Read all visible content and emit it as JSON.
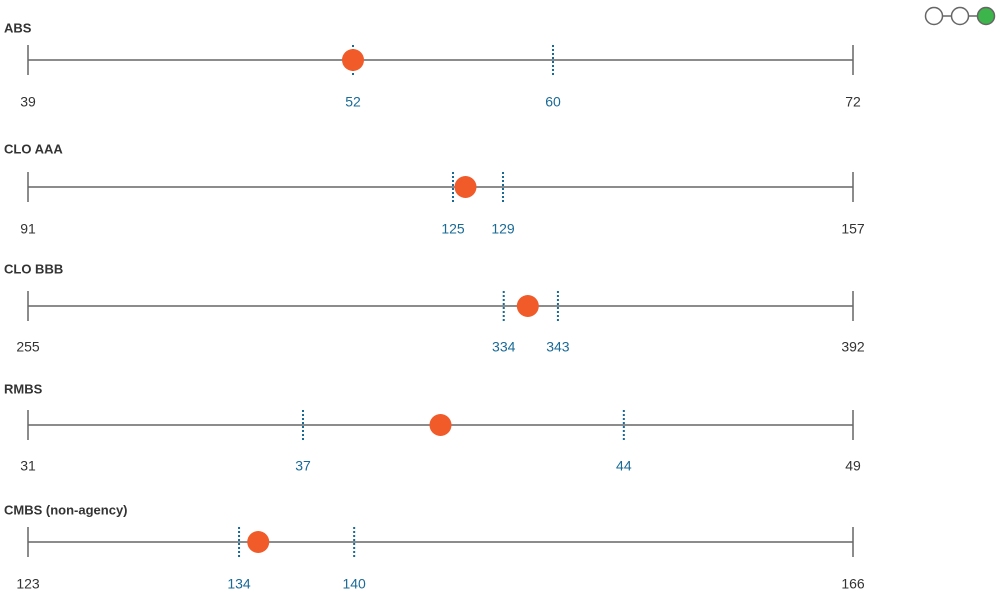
{
  "chart_data": [
    {
      "type": "range",
      "title": "ABS",
      "xlim": [
        39,
        72
      ],
      "xticks": [
        39,
        72
      ],
      "markers": [
        52,
        60
      ],
      "value": 52,
      "color": "#f15a29",
      "marker_color": "#1a6a96"
    },
    {
      "type": "range",
      "title": "CLO AAA",
      "xlim": [
        91,
        157
      ],
      "xticks": [
        91,
        157
      ],
      "markers": [
        125,
        129
      ],
      "value": 126,
      "color": "#f15a29",
      "marker_color": "#1a6a96"
    },
    {
      "type": "range",
      "title": "CLO BBB",
      "xlim": [
        255,
        392
      ],
      "xticks": [
        255,
        392
      ],
      "markers": [
        334,
        343
      ],
      "value": 338,
      "color": "#f15a29",
      "marker_color": "#1a6a96"
    },
    {
      "type": "range",
      "title": "RMBS",
      "xlim": [
        31,
        49
      ],
      "xticks": [
        31,
        49
      ],
      "markers": [
        37,
        44
      ],
      "value": 40,
      "color": "#f15a29",
      "marker_color": "#1a6a96"
    },
    {
      "type": "range",
      "title": "CMBS (non-agency)",
      "xlim": [
        123,
        166
      ],
      "xticks": [
        123,
        166
      ],
      "markers": [
        134,
        140
      ],
      "value": 135,
      "color": "#f15a29",
      "marker_color": "#1a6a96"
    }
  ]
}
